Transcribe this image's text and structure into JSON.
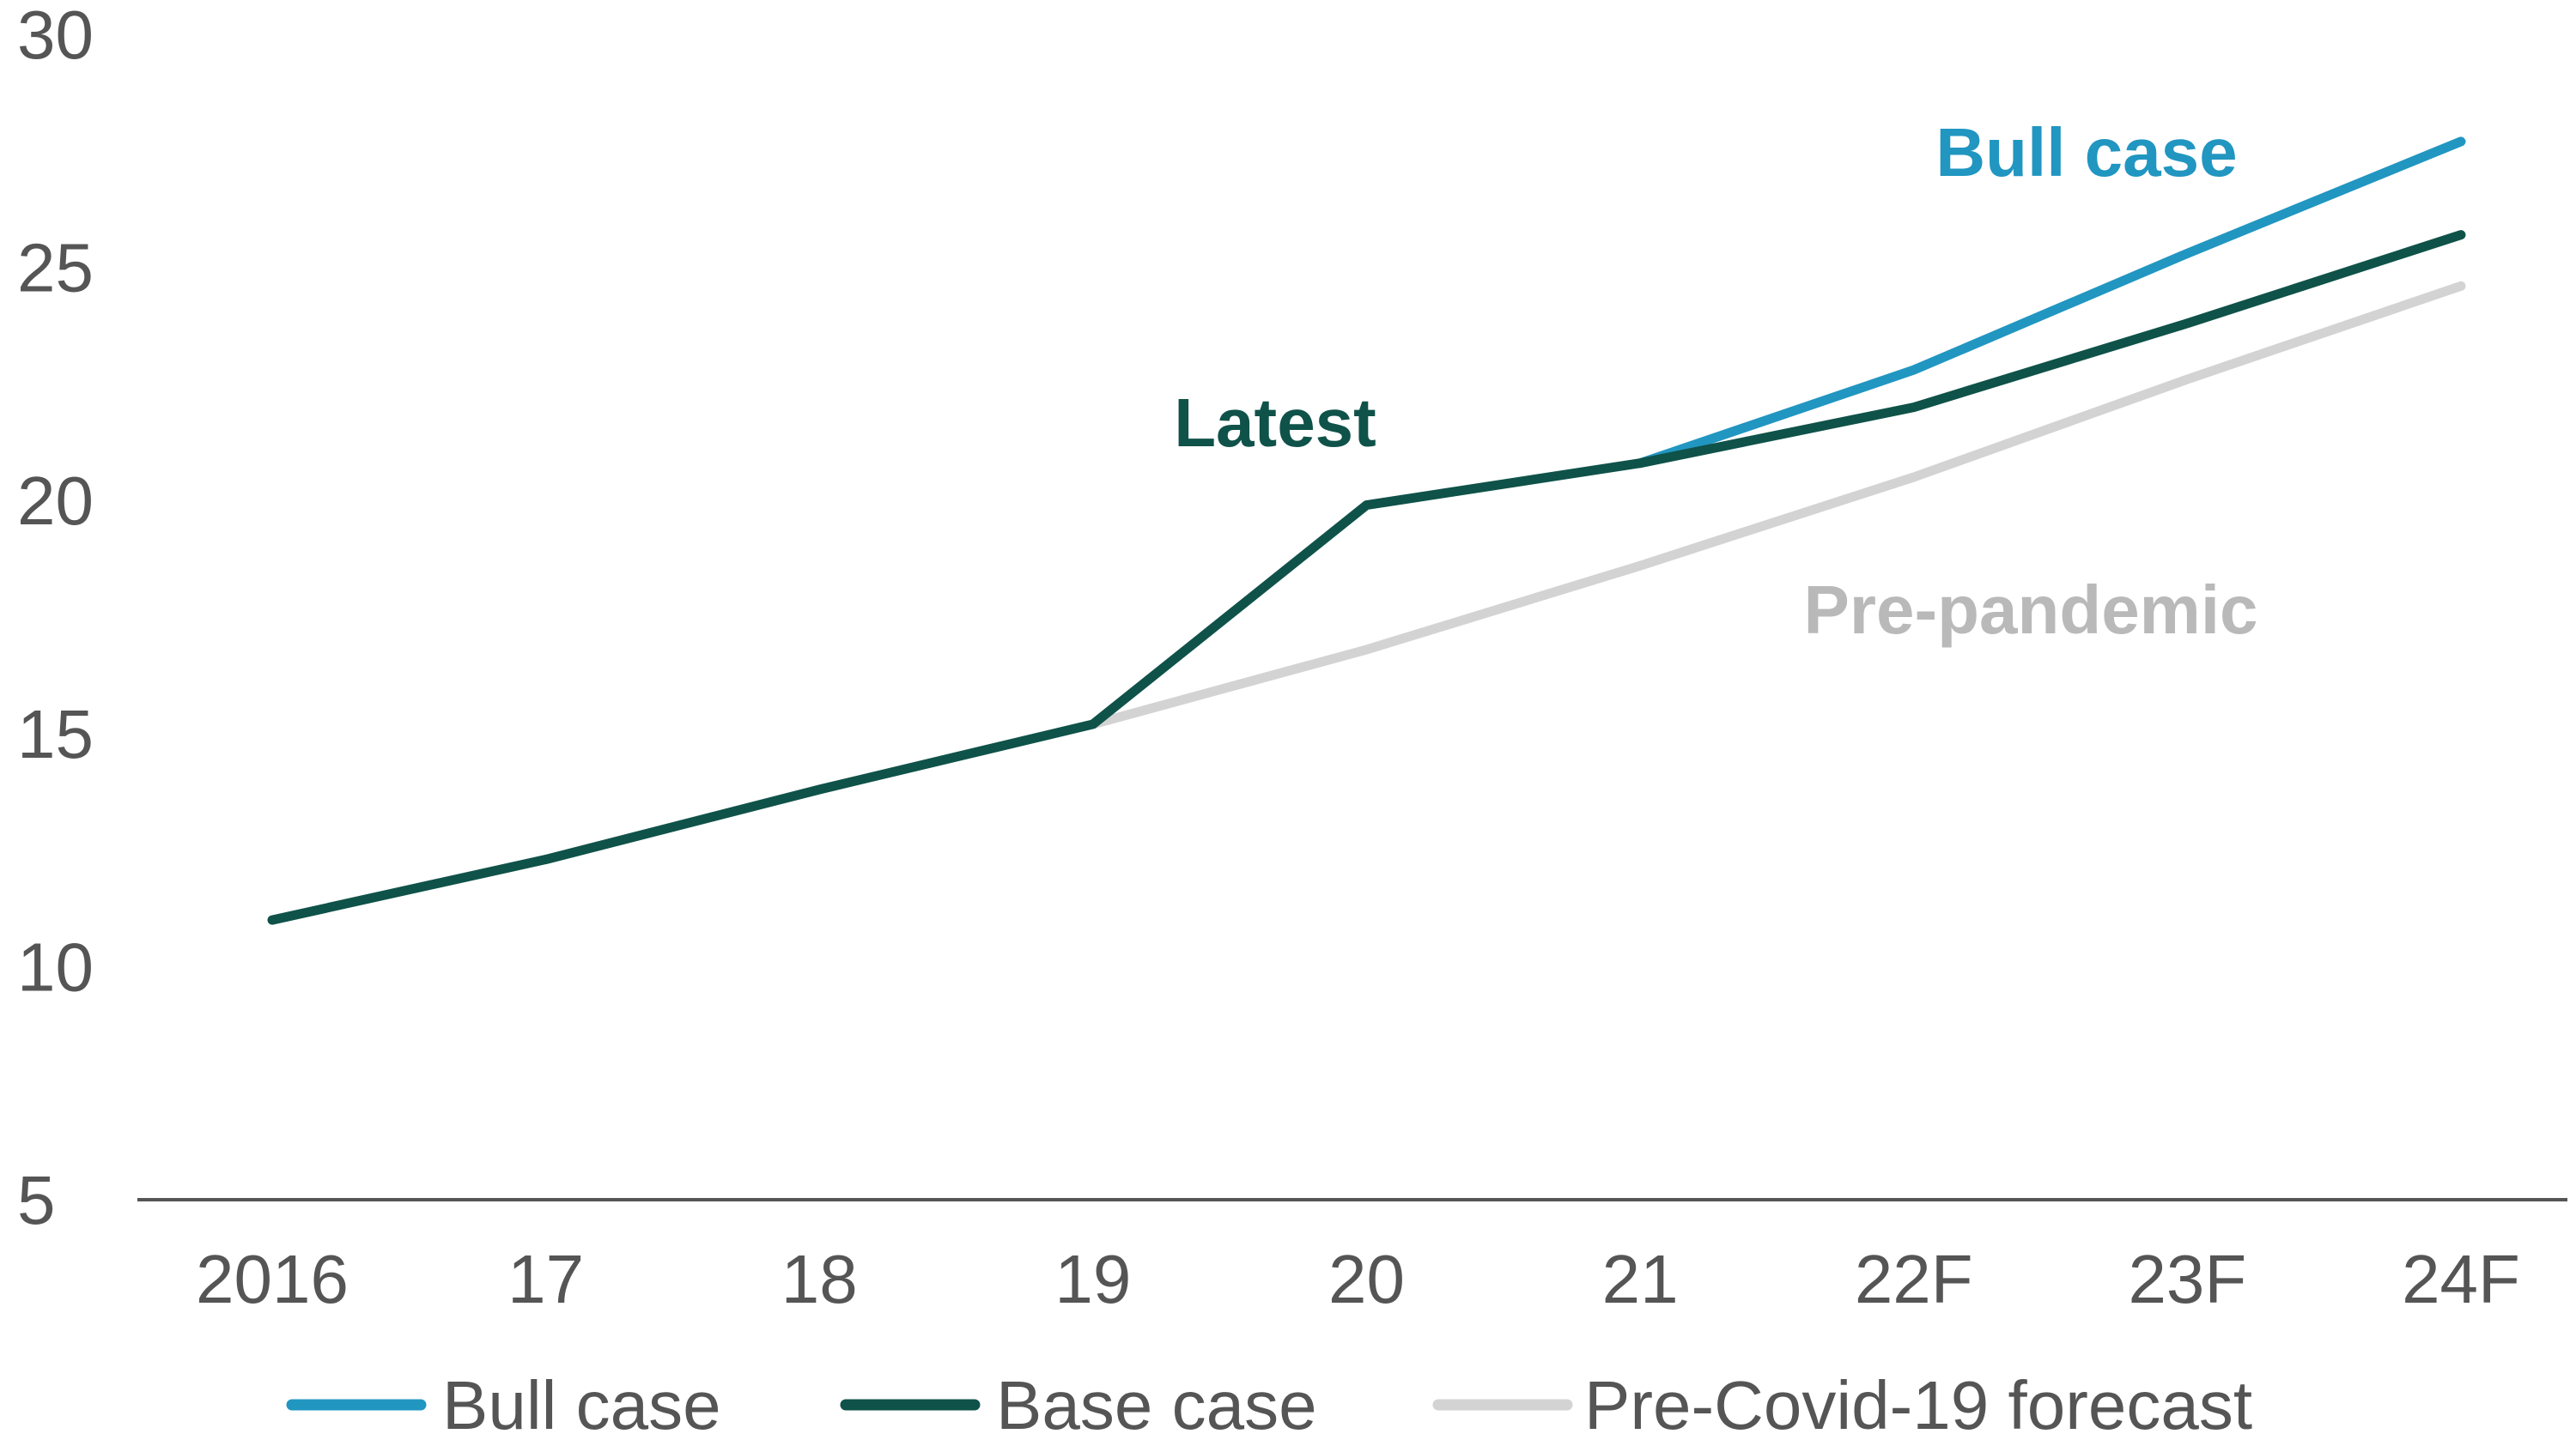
{
  "chart_data": {
    "type": "line",
    "x": [
      "2016",
      "17",
      "18",
      "19",
      "20",
      "21",
      "22F",
      "23F",
      "24F"
    ],
    "ylim": [
      5,
      30
    ],
    "yticks": [
      5,
      10,
      15,
      20,
      25,
      30
    ],
    "grid": false,
    "series": [
      {
        "name": "Bull case",
        "color": "#2196c1",
        "values": [
          null,
          null,
          null,
          null,
          null,
          20.8,
          22.8,
          25.3,
          27.7
        ]
      },
      {
        "name": "Base case",
        "color": "#0f5249",
        "values": [
          11.0,
          12.3,
          13.8,
          15.2,
          19.9,
          20.8,
          22.0,
          23.8,
          25.7
        ]
      },
      {
        "name": "Pre-Covid-19 forecast",
        "color": "#d3d3d3",
        "values": [
          null,
          null,
          null,
          15.2,
          16.8,
          18.6,
          20.5,
          22.6,
          24.6
        ]
      }
    ],
    "annotations": [
      {
        "text": "Bull case",
        "color": "#2196c1",
        "anchor_index": 7
      },
      {
        "text": "Latest",
        "color": "#0f5249",
        "anchor_index": 4
      },
      {
        "text": "Pre-pandemic",
        "color": "#b9b9b9",
        "anchor_index": 7
      }
    ],
    "legend": {
      "position": "bottom",
      "items": [
        "Bull case",
        "Base case",
        "Pre-Covid-19 forecast"
      ]
    }
  }
}
